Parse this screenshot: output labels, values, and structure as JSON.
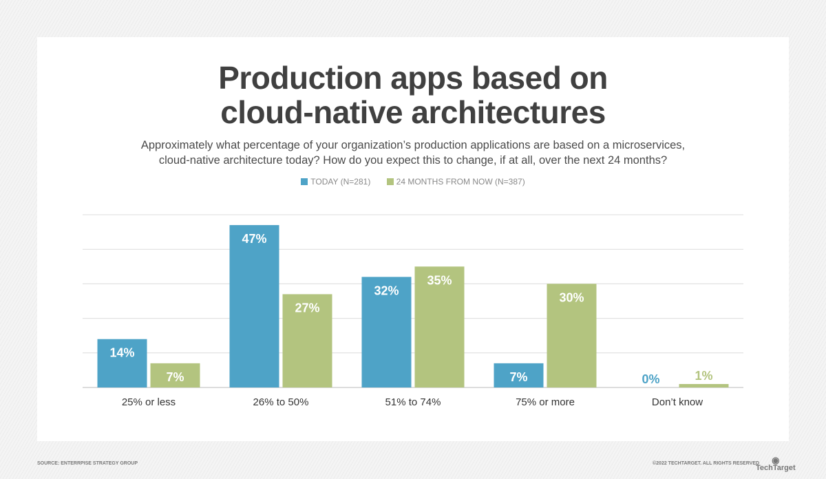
{
  "chart_data": {
    "type": "bar",
    "title": "Production apps based on cloud-native architectures",
    "title_lines": [
      "Production apps based on",
      "cloud-native architectures"
    ],
    "subtitle_lines": [
      "Approximately what percentage of your organization’s production applications are based on a microservices,",
      "cloud-native architecture today? How do you expect this to change, if at all, over the next 24 months?"
    ],
    "categories": [
      "25% or less",
      "26% to 50%",
      "51% to 74%",
      "75% or more",
      "Don’t know"
    ],
    "series": [
      {
        "name": "TODAY (N=281)",
        "color": "#4ea3c7",
        "values": [
          14,
          47,
          32,
          7,
          0
        ],
        "labels": [
          "14%",
          "47%",
          "32%",
          "7%",
          "0%"
        ]
      },
      {
        "name": "24 MONTHS FROM NOW (N=387)",
        "color": "#b3c47f",
        "values": [
          7,
          27,
          35,
          30,
          1
        ],
        "labels": [
          "7%",
          "27%",
          "35%",
          "30%",
          "1%"
        ]
      }
    ],
    "ylim": [
      0,
      50
    ],
    "grid": true,
    "legend": "top-center",
    "xlabel": "",
    "ylabel": ""
  },
  "footer": {
    "source": "SOURCE: ENTERRPISE STRATEGY GROUP",
    "copyright": "©2022 TECHTARGET. ALL RIGHTS RESERVED",
    "logo": "TechTarget"
  }
}
